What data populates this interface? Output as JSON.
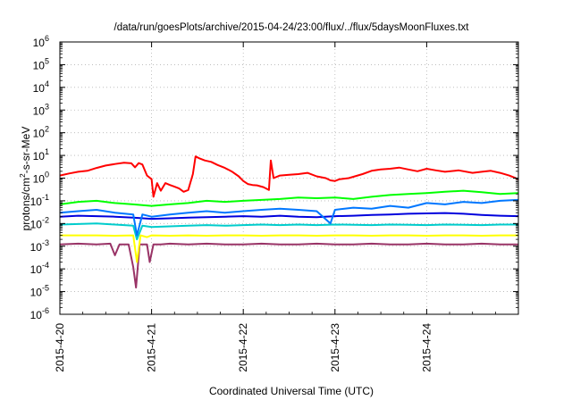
{
  "chart_data": {
    "type": "line",
    "title": "/data/run/goesPlots/archive/2015-04-24/23:00/flux/../flux/5daysMoonFluxes.txt",
    "xlabel": "Coordinated Universal Time (UTC)",
    "ylabel": {
      "pre": "protons/cm",
      "sup": "2",
      "post": "-s-sr-MeV"
    },
    "y_scale": "log",
    "ylim_exp": [
      -6,
      6
    ],
    "y_ticks": [
      {
        "exp": -6,
        "label": "-6"
      },
      {
        "exp": -5,
        "label": "-5"
      },
      {
        "exp": -4,
        "label": "-4"
      },
      {
        "exp": -3,
        "label": "-3"
      },
      {
        "exp": -2,
        "label": "-2"
      },
      {
        "exp": -1,
        "label": "-1"
      },
      {
        "exp": 0,
        "label": "0"
      },
      {
        "exp": 1,
        "label": "1"
      },
      {
        "exp": 2,
        "label": "2"
      },
      {
        "exp": 3,
        "label": "3"
      },
      {
        "exp": 4,
        "label": "4"
      },
      {
        "exp": 5,
        "label": "5"
      },
      {
        "exp": 6,
        "label": "6"
      }
    ],
    "y_tick_base": "10",
    "x_range_days": [
      "2015-04-20",
      "2015-04-25"
    ],
    "x_ticks": [
      {
        "day": 0,
        "label": "2015-4-20"
      },
      {
        "day": 1,
        "label": "2015-4-21"
      },
      {
        "day": 2,
        "label": "2015-4-22"
      },
      {
        "day": 3,
        "label": "2015-4-23"
      },
      {
        "day": 4,
        "label": "2015-4-24"
      }
    ],
    "grid": true,
    "legend": "none",
    "series": [
      {
        "color": "#ff0000",
        "points": [
          [
            0.0,
            1.3
          ],
          [
            0.1,
            1.6
          ],
          [
            0.2,
            1.9
          ],
          [
            0.3,
            2.1
          ],
          [
            0.4,
            2.8
          ],
          [
            0.5,
            3.6
          ],
          [
            0.6,
            4.2
          ],
          [
            0.7,
            4.8
          ],
          [
            0.78,
            4.5
          ],
          [
            0.82,
            3.0
          ],
          [
            0.86,
            4.6
          ],
          [
            0.9,
            4.0
          ],
          [
            0.95,
            1.3
          ],
          [
            1.0,
            0.9
          ],
          [
            1.02,
            0.15
          ],
          [
            1.06,
            0.6
          ],
          [
            1.1,
            0.28
          ],
          [
            1.15,
            0.6
          ],
          [
            1.2,
            0.5
          ],
          [
            1.25,
            0.42
          ],
          [
            1.3,
            0.35
          ],
          [
            1.35,
            0.25
          ],
          [
            1.4,
            0.3
          ],
          [
            1.45,
            1.5
          ],
          [
            1.48,
            9.0
          ],
          [
            1.52,
            7.5
          ],
          [
            1.58,
            6.0
          ],
          [
            1.65,
            5.2
          ],
          [
            1.72,
            3.8
          ],
          [
            1.8,
            2.8
          ],
          [
            1.88,
            1.9
          ],
          [
            1.95,
            1.2
          ],
          [
            2.0,
            0.75
          ],
          [
            2.05,
            0.55
          ],
          [
            2.1,
            0.5
          ],
          [
            2.15,
            0.48
          ],
          [
            2.22,
            0.4
          ],
          [
            2.28,
            0.3
          ],
          [
            2.3,
            6.0
          ],
          [
            2.33,
            1.0
          ],
          [
            2.4,
            1.3
          ],
          [
            2.5,
            1.4
          ],
          [
            2.6,
            1.5
          ],
          [
            2.7,
            1.7
          ],
          [
            2.8,
            1.2
          ],
          [
            2.9,
            1.0
          ],
          [
            2.95,
            0.8
          ],
          [
            3.0,
            0.75
          ],
          [
            3.05,
            0.9
          ],
          [
            3.15,
            1.0
          ],
          [
            3.3,
            1.5
          ],
          [
            3.4,
            2.1
          ],
          [
            3.5,
            2.4
          ],
          [
            3.6,
            2.6
          ],
          [
            3.7,
            2.9
          ],
          [
            3.8,
            2.4
          ],
          [
            3.9,
            2.0
          ],
          [
            4.0,
            2.6
          ],
          [
            4.1,
            2.2
          ],
          [
            4.2,
            1.9
          ],
          [
            4.35,
            2.2
          ],
          [
            4.5,
            1.7
          ],
          [
            4.6,
            1.9
          ],
          [
            4.7,
            2.1
          ],
          [
            4.8,
            1.7
          ],
          [
            4.9,
            1.3
          ],
          [
            5.0,
            0.9
          ]
        ]
      },
      {
        "color": "#00ff00",
        "points": [
          [
            0.0,
            0.07
          ],
          [
            0.2,
            0.09
          ],
          [
            0.4,
            0.1
          ],
          [
            0.6,
            0.08
          ],
          [
            0.8,
            0.07
          ],
          [
            1.0,
            0.06
          ],
          [
            1.2,
            0.07
          ],
          [
            1.4,
            0.08
          ],
          [
            1.6,
            0.1
          ],
          [
            1.8,
            0.09
          ],
          [
            2.0,
            0.1
          ],
          [
            2.2,
            0.11
          ],
          [
            2.4,
            0.12
          ],
          [
            2.6,
            0.14
          ],
          [
            2.8,
            0.13
          ],
          [
            3.0,
            0.14
          ],
          [
            3.2,
            0.12
          ],
          [
            3.4,
            0.15
          ],
          [
            3.6,
            0.18
          ],
          [
            3.8,
            0.2
          ],
          [
            4.0,
            0.22
          ],
          [
            4.2,
            0.25
          ],
          [
            4.4,
            0.28
          ],
          [
            4.6,
            0.24
          ],
          [
            4.8,
            0.2
          ],
          [
            5.0,
            0.22
          ]
        ]
      },
      {
        "color": "#0077ff",
        "points": [
          [
            0.0,
            0.03
          ],
          [
            0.2,
            0.035
          ],
          [
            0.4,
            0.04
          ],
          [
            0.6,
            0.03
          ],
          [
            0.8,
            0.025
          ],
          [
            0.84,
            0.003
          ],
          [
            0.9,
            0.025
          ],
          [
            1.0,
            0.02
          ],
          [
            1.2,
            0.025
          ],
          [
            1.4,
            0.03
          ],
          [
            1.6,
            0.035
          ],
          [
            1.8,
            0.03
          ],
          [
            2.0,
            0.035
          ],
          [
            2.2,
            0.04
          ],
          [
            2.4,
            0.045
          ],
          [
            2.6,
            0.04
          ],
          [
            2.8,
            0.035
          ],
          [
            2.95,
            0.01
          ],
          [
            3.0,
            0.04
          ],
          [
            3.2,
            0.05
          ],
          [
            3.4,
            0.045
          ],
          [
            3.6,
            0.06
          ],
          [
            3.8,
            0.05
          ],
          [
            4.0,
            0.08
          ],
          [
            4.2,
            0.07
          ],
          [
            4.4,
            0.09
          ],
          [
            4.6,
            0.08
          ],
          [
            4.8,
            0.1
          ],
          [
            5.0,
            0.11
          ]
        ]
      },
      {
        "color": "#0000dd",
        "points": [
          [
            0.0,
            0.02
          ],
          [
            0.2,
            0.022
          ],
          [
            0.4,
            0.021
          ],
          [
            0.6,
            0.02
          ],
          [
            0.8,
            0.018
          ],
          [
            1.0,
            0.016
          ],
          [
            1.2,
            0.017
          ],
          [
            1.4,
            0.018
          ],
          [
            1.6,
            0.019
          ],
          [
            1.8,
            0.02
          ],
          [
            2.0,
            0.021
          ],
          [
            2.2,
            0.02
          ],
          [
            2.4,
            0.022
          ],
          [
            2.6,
            0.02
          ],
          [
            2.8,
            0.019
          ],
          [
            3.0,
            0.021
          ],
          [
            3.2,
            0.022
          ],
          [
            3.4,
            0.024
          ],
          [
            3.6,
            0.025
          ],
          [
            3.8,
            0.027
          ],
          [
            4.0,
            0.028
          ],
          [
            4.2,
            0.029
          ],
          [
            4.4,
            0.027
          ],
          [
            4.6,
            0.024
          ],
          [
            4.8,
            0.022
          ],
          [
            5.0,
            0.021
          ]
        ]
      },
      {
        "color": "#00cccc",
        "points": [
          [
            0.0,
            0.009
          ],
          [
            0.2,
            0.0095
          ],
          [
            0.4,
            0.01
          ],
          [
            0.6,
            0.009
          ],
          [
            0.8,
            0.008
          ],
          [
            0.84,
            0.002
          ],
          [
            0.9,
            0.008
          ],
          [
            1.0,
            0.007
          ],
          [
            1.2,
            0.0075
          ],
          [
            1.4,
            0.008
          ],
          [
            1.6,
            0.0085
          ],
          [
            1.8,
            0.008
          ],
          [
            2.0,
            0.0085
          ],
          [
            2.2,
            0.009
          ],
          [
            2.4,
            0.0085
          ],
          [
            2.6,
            0.009
          ],
          [
            2.8,
            0.0085
          ],
          [
            3.0,
            0.009
          ],
          [
            3.2,
            0.0088
          ],
          [
            3.4,
            0.0085
          ],
          [
            3.6,
            0.009
          ],
          [
            3.8,
            0.0088
          ],
          [
            4.0,
            0.0085
          ],
          [
            4.2,
            0.009
          ],
          [
            4.4,
            0.0088
          ],
          [
            4.6,
            0.0085
          ],
          [
            4.8,
            0.009
          ],
          [
            5.0,
            0.009
          ]
        ]
      },
      {
        "color": "#ffff00",
        "points": [
          [
            0.0,
            0.003
          ],
          [
            0.2,
            0.003
          ],
          [
            0.4,
            0.003
          ],
          [
            0.6,
            0.0029
          ],
          [
            0.8,
            0.003
          ],
          [
            0.84,
            0.0002
          ],
          [
            0.88,
            0.003
          ],
          [
            0.95,
            0.0025
          ],
          [
            1.0,
            0.003
          ],
          [
            1.2,
            0.0029
          ],
          [
            1.4,
            0.003
          ],
          [
            1.6,
            0.0029
          ],
          [
            1.8,
            0.003
          ],
          [
            2.0,
            0.003
          ],
          [
            2.2,
            0.0029
          ],
          [
            2.4,
            0.003
          ],
          [
            2.6,
            0.003
          ],
          [
            2.8,
            0.0029
          ],
          [
            3.0,
            0.003
          ],
          [
            3.2,
            0.003
          ],
          [
            3.4,
            0.0029
          ],
          [
            3.6,
            0.003
          ],
          [
            3.8,
            0.003
          ],
          [
            4.0,
            0.0029
          ],
          [
            4.2,
            0.003
          ],
          [
            4.4,
            0.003
          ],
          [
            4.6,
            0.0029
          ],
          [
            4.8,
            0.003
          ],
          [
            5.0,
            0.003
          ]
        ]
      },
      {
        "color": "#993366",
        "points": [
          [
            0.0,
            0.0012
          ],
          [
            0.2,
            0.0013
          ],
          [
            0.4,
            0.0012
          ],
          [
            0.55,
            0.0013
          ],
          [
            0.6,
            0.0004
          ],
          [
            0.65,
            0.0012
          ],
          [
            0.75,
            0.0012
          ],
          [
            0.8,
            0.00012
          ],
          [
            0.83,
            1.5e-05
          ],
          [
            0.87,
            0.0012
          ],
          [
            0.95,
            0.0012
          ],
          [
            0.98,
            0.0002
          ],
          [
            1.02,
            0.0012
          ],
          [
            1.1,
            0.0012
          ],
          [
            1.2,
            0.0013
          ],
          [
            1.4,
            0.0012
          ],
          [
            1.6,
            0.0013
          ],
          [
            1.8,
            0.0012
          ],
          [
            2.0,
            0.0012
          ],
          [
            2.2,
            0.0013
          ],
          [
            2.4,
            0.0012
          ],
          [
            2.6,
            0.0012
          ],
          [
            2.8,
            0.0013
          ],
          [
            3.0,
            0.0012
          ],
          [
            3.2,
            0.0012
          ],
          [
            3.4,
            0.0013
          ],
          [
            3.6,
            0.0012
          ],
          [
            3.8,
            0.0012
          ],
          [
            4.0,
            0.0013
          ],
          [
            4.2,
            0.0012
          ],
          [
            4.4,
            0.0012
          ],
          [
            4.6,
            0.0013
          ],
          [
            4.8,
            0.0012
          ],
          [
            5.0,
            0.0012
          ]
        ]
      }
    ]
  }
}
